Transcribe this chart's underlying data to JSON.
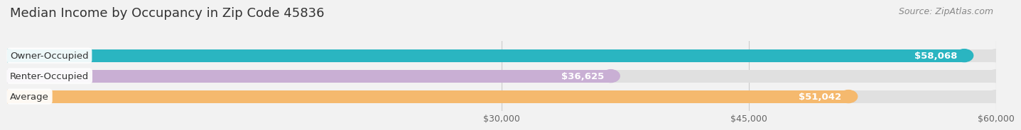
{
  "title": "Median Income by Occupancy in Zip Code 45836",
  "source": "Source: ZipAtlas.com",
  "categories": [
    "Owner-Occupied",
    "Renter-Occupied",
    "Average"
  ],
  "values": [
    58068,
    36625,
    51042
  ],
  "bar_colors": [
    "#2ab5c1",
    "#c9afd4",
    "#f5b96e"
  ],
  "value_labels": [
    "$58,068",
    "$36,625",
    "$51,042"
  ],
  "xmin": 0,
  "xmax": 60000,
  "xticks": [
    30000,
    45000,
    60000
  ],
  "xtick_labels": [
    "$30,000",
    "$45,000",
    "$60,000"
  ],
  "background_color": "#f2f2f2",
  "bar_background_color": "#e0e0e0",
  "title_fontsize": 13,
  "source_fontsize": 9,
  "bar_height": 0.62,
  "bar_label_fontsize": 9.5,
  "value_label_fontsize": 9.5
}
